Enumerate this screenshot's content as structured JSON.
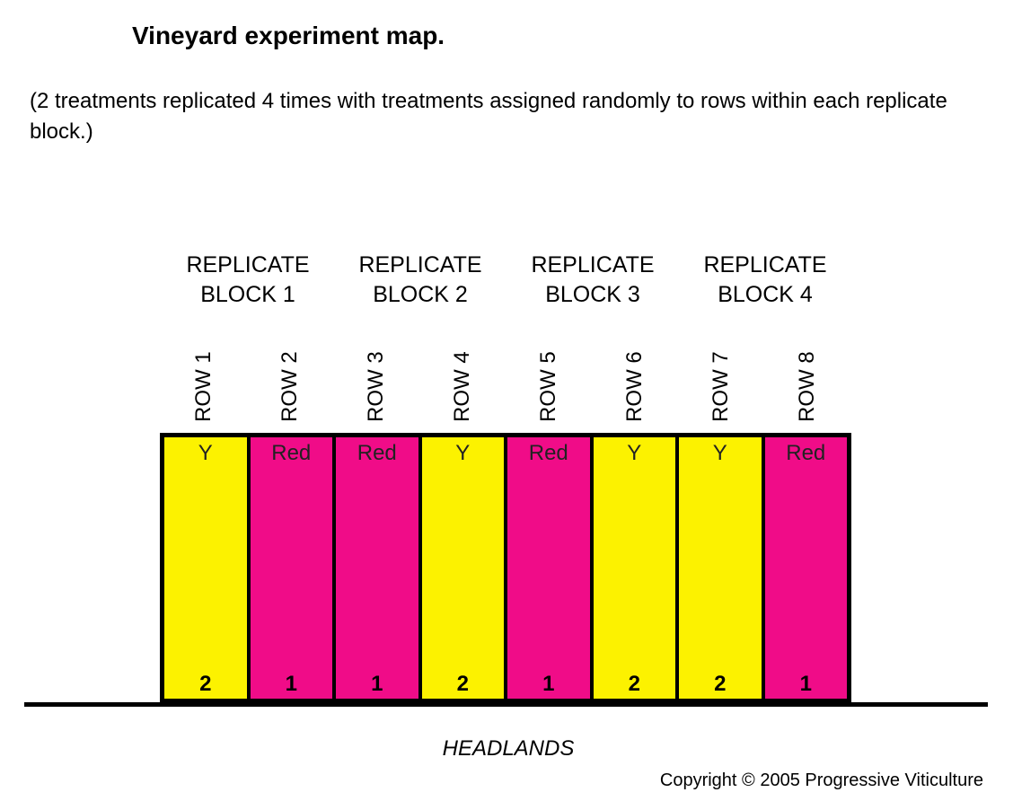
{
  "title": "Vineyard experiment map.",
  "subtitle": "(2 treatments replicated 4 times with treatments assigned randomly to rows within each replicate block.)",
  "blocks": [
    {
      "line1": "REPLICATE",
      "line2": "BLOCK 1"
    },
    {
      "line1": "REPLICATE",
      "line2": "BLOCK 2"
    },
    {
      "line1": "REPLICATE",
      "line2": "BLOCK 3"
    },
    {
      "line1": "REPLICATE",
      "line2": "BLOCK 4"
    }
  ],
  "rows": [
    {
      "label": "ROW 1",
      "treatment": "Y",
      "number": "2",
      "color": "#FCF200"
    },
    {
      "label": "ROW 2",
      "treatment": "Red",
      "number": "1",
      "color": "#F00C88"
    },
    {
      "label": "ROW 3",
      "treatment": "Red",
      "number": "1",
      "color": "#F00C88"
    },
    {
      "label": "ROW 4",
      "treatment": "Y",
      "number": "2",
      "color": "#FCF200"
    },
    {
      "label": "ROW 5",
      "treatment": "Red",
      "number": "1",
      "color": "#F00C88"
    },
    {
      "label": "ROW 6",
      "treatment": "Y",
      "number": "2",
      "color": "#FCF200"
    },
    {
      "label": "ROW 7",
      "treatment": "Y",
      "number": "2",
      "color": "#FCF200"
    },
    {
      "label": "ROW 8",
      "treatment": "Red",
      "number": "1",
      "color": "#F00C88"
    }
  ],
  "headlands": "HEADLANDS",
  "copyright": "Copyright © 2005 Progressive Viticulture"
}
